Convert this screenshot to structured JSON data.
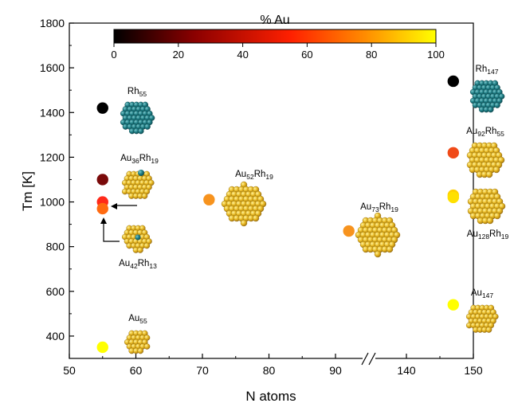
{
  "chart_data": {
    "type": "scatter",
    "xlabel": "N atoms",
    "ylabel": "Tm [K]",
    "xticks": [
      "50",
      "60",
      "70",
      "80",
      "90",
      "140",
      "150"
    ],
    "yticks": [
      "400",
      "600",
      "800",
      "1000",
      "1200",
      "1400",
      "1600",
      "1800"
    ],
    "ylim": [
      300,
      1800
    ],
    "axis_break": "between 90 and 140",
    "colorbar": {
      "title": "% Au",
      "ticks": [
        "0",
        "20",
        "40",
        "60",
        "80",
        "100"
      ],
      "range": [
        0,
        100
      ],
      "colors": [
        "#000000",
        "#8b0000",
        "#ff2000",
        "#ff8c00",
        "#ffff00"
      ]
    },
    "points": [
      {
        "x": 55,
        "y": 1420,
        "au_pct": 0,
        "color": "#000000"
      },
      {
        "x": 55,
        "y": 1100,
        "au_pct": 65,
        "color": "#7a0a0a"
      },
      {
        "x": 55,
        "y": 1000,
        "au_pct": 65,
        "color": "#ff2a1a"
      },
      {
        "x": 55,
        "y": 970,
        "au_pct": 76,
        "color": "#ff6a10"
      },
      {
        "x": 55,
        "y": 350,
        "au_pct": 100,
        "color": "#ffff00"
      },
      {
        "x": 71,
        "y": 1010,
        "au_pct": 73,
        "color": "#f7931e"
      },
      {
        "x": 92,
        "y": 870,
        "au_pct": 79,
        "color": "#f7931e"
      },
      {
        "x": 147,
        "y": 1540,
        "au_pct": 0,
        "color": "#000000"
      },
      {
        "x": 147,
        "y": 1220,
        "au_pct": 63,
        "color": "#f04a18"
      },
      {
        "x": 147,
        "y": 1030,
        "au_pct": 87,
        "color": "#ffd000"
      },
      {
        "x": 147,
        "y": 1020,
        "au_pct": 87,
        "color": "#ffe000"
      },
      {
        "x": 147,
        "y": 540,
        "au_pct": 100,
        "color": "#ffff00"
      }
    ],
    "annotations": [
      {
        "base": "Rh",
        "sub": "55",
        "type": "teal"
      },
      {
        "base": "Au",
        "sub": "36",
        "base2": "Rh",
        "sub2": "19",
        "type": "mixed"
      },
      {
        "base": "Au",
        "sub": "42",
        "base2": "Rh",
        "sub2": "13",
        "type": "mixed"
      },
      {
        "base": "Au",
        "sub": "55",
        "type": "gold"
      },
      {
        "base": "Au",
        "sub": "52",
        "base2": "Rh",
        "sub2": "19",
        "type": "gold"
      },
      {
        "base": "Au",
        "sub": "73",
        "base2": "Rh",
        "sub2": "19",
        "type": "gold"
      },
      {
        "base": "Rh",
        "sub": "147",
        "type": "teal"
      },
      {
        "base": "Au",
        "sub": "92",
        "base2": "Rh",
        "sub2": "55",
        "type": "gold"
      },
      {
        "base": "Au",
        "sub": "128",
        "base2": "Rh",
        "sub2": "19",
        "type": "gold"
      },
      {
        "base": "Au",
        "sub": "147",
        "type": "gold"
      }
    ]
  }
}
